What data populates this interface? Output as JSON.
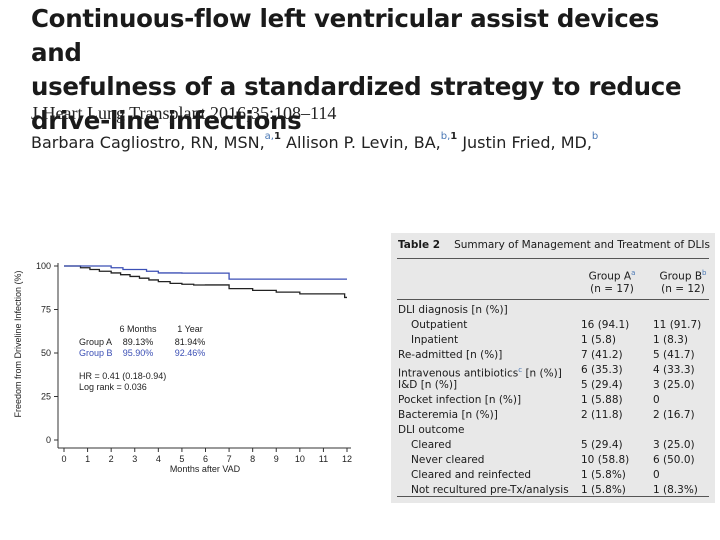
{
  "paper": {
    "title_lines": [
      "Continuous-flow left ventricular assist devices and",
      "usefulness of a standardized strategy to reduce",
      "drive-line infections"
    ],
    "journal": "J Heart Lung Transplant 2016;35:108–114",
    "authors": [
      {
        "name": "Barbara Cagliostro, RN, MSN,",
        "sup": "a,",
        "sup_bold": "1"
      },
      {
        "name": "Allison P. Levin, BA,",
        "sup": "b,",
        "sup_bold": "1"
      },
      {
        "name": "Justin Fried, MD,",
        "sup": "b",
        "sup_bold": ""
      }
    ]
  },
  "chart_data": {
    "type": "line",
    "title": "",
    "xlabel": "Months after VAD",
    "ylabel": "Freedom from Driveline Infection (%)",
    "xlim": [
      0,
      12
    ],
    "ylim": [
      0,
      100
    ],
    "xticks": [
      0,
      1,
      2,
      3,
      4,
      5,
      6,
      7,
      8,
      9,
      10,
      11,
      12
    ],
    "yticks": [
      0,
      25,
      50,
      75,
      100
    ],
    "series": [
      {
        "name": "Group A",
        "color": "#222222",
        "x": [
          0,
          0.7,
          1.1,
          1.5,
          2.0,
          2.4,
          2.8,
          3.2,
          3.6,
          4.0,
          4.5,
          5.0,
          5.5,
          6.0,
          7.0,
          8.0,
          9.0,
          10.0,
          11.0,
          11.9,
          12
        ],
        "y": [
          100,
          99,
          98,
          97,
          96,
          95,
          94,
          93,
          92,
          91,
          90,
          89.5,
          89.1,
          89.13,
          87,
          86,
          85,
          84,
          84,
          81.94,
          81.94
        ]
      },
      {
        "name": "Group B",
        "color": "#3b4fb5",
        "x": [
          0,
          2.0,
          2.5,
          3.5,
          4.0,
          5.0,
          6.0,
          7.0,
          12
        ],
        "y": [
          100,
          99,
          98,
          97,
          96,
          95.9,
          95.9,
          92.46,
          92.46
        ]
      }
    ],
    "legend_header": [
      "6 Months",
      "1 Year"
    ],
    "legend_rows": [
      {
        "label": "Group A",
        "m6": "89.13%",
        "y1": "81.94%"
      },
      {
        "label": "Group B",
        "m6": "95.90%",
        "y1": "92.46%"
      }
    ],
    "annotations": [
      "HR = 0.41 (0.18-0.94)",
      "Log rank = 0.036"
    ]
  },
  "table": {
    "label": "Table 2",
    "caption": "Summary of Management and Treatment of DLIs",
    "group_a": "Group A",
    "group_a_sup": "a",
    "group_a_n": "(n = 17)",
    "group_b": "Group B",
    "group_b_sup": "b",
    "group_b_n": "(n = 12)",
    "rows": [
      {
        "label": "DLI diagnosis [n (%)]",
        "a": "",
        "b": "",
        "indent": false
      },
      {
        "label": "Outpatient",
        "a": "16 (94.1)",
        "b": "11 (91.7)",
        "indent": true
      },
      {
        "label": "Inpatient",
        "a": "1 (5.8)",
        "b": "1 (8.3)",
        "indent": true
      },
      {
        "label": "Re-admitted [n (%)]",
        "a": "7 (41.2)",
        "b": "5 (41.7)",
        "indent": false
      },
      {
        "label": "Intravenous antibiotics",
        "label_sup": "c",
        "label_tail": " [n (%)]",
        "a": "6 (35.3)",
        "b": "4 (33.3)",
        "indent": false
      },
      {
        "label": "I&D [n (%)]",
        "a": "5 (29.4)",
        "b": "3 (25.0)",
        "indent": false
      },
      {
        "label": "Pocket infection [n (%)]",
        "a": "1 (5.88)",
        "b": "0",
        "indent": false
      },
      {
        "label": "Bacteremia [n (%)]",
        "a": "2 (11.8)",
        "b": "2 (16.7)",
        "indent": false
      },
      {
        "label": "DLI outcome",
        "a": "",
        "b": "",
        "indent": false
      },
      {
        "label": "Cleared",
        "a": "5 (29.4)",
        "b": "3 (25.0)",
        "indent": true
      },
      {
        "label": "Never cleared",
        "a": "10 (58.8)",
        "b": "6 (50.0)",
        "indent": true
      },
      {
        "label": "Cleared and reinfected",
        "a": "1 (5.8%)",
        "b": "0",
        "indent": true
      },
      {
        "label": "Not recultured pre-Tx/analysis",
        "a": "1 (5.8%)",
        "b": "1 (8.3%)",
        "indent": true
      }
    ]
  }
}
